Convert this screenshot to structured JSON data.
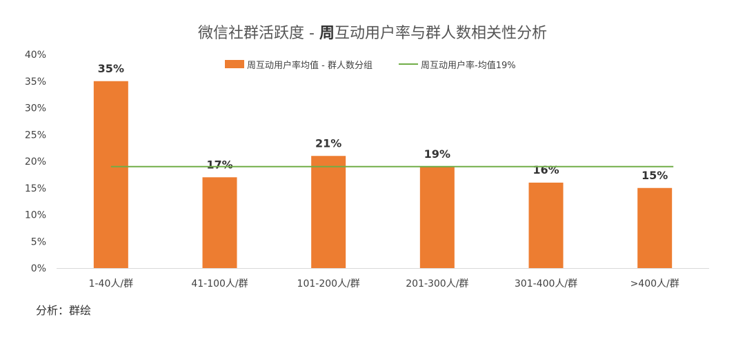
{
  "chart_data": {
    "type": "bar",
    "title_part1": "微信社群活跃度 - ",
    "title_part2": "周",
    "title_part3": "互动用户率与群人数相关性分析",
    "categories": [
      "1-40人/群",
      "41-100人/群",
      "101-200人/群",
      "201-300人/群",
      "301-400人/群",
      ">400人/群"
    ],
    "series": [
      {
        "name": "周互动用户率均值 - 群人数分组",
        "values": [
          35,
          17,
          21,
          19,
          16,
          15
        ],
        "color": "#ED7D31"
      }
    ],
    "data_labels": [
      "35%",
      "17%",
      "21%",
      "19%",
      "16%",
      "15%"
    ],
    "reference_line": {
      "name": "周互动用户率-均值19%",
      "value": 19,
      "color": "#70AD47"
    },
    "y_ticks": [
      "0%",
      "5%",
      "10%",
      "15%",
      "20%",
      "25%",
      "30%",
      "35%",
      "40%"
    ],
    "ylim": [
      0,
      40
    ],
    "legend_position": "top",
    "grid": false
  },
  "footer": "分析：群绘"
}
